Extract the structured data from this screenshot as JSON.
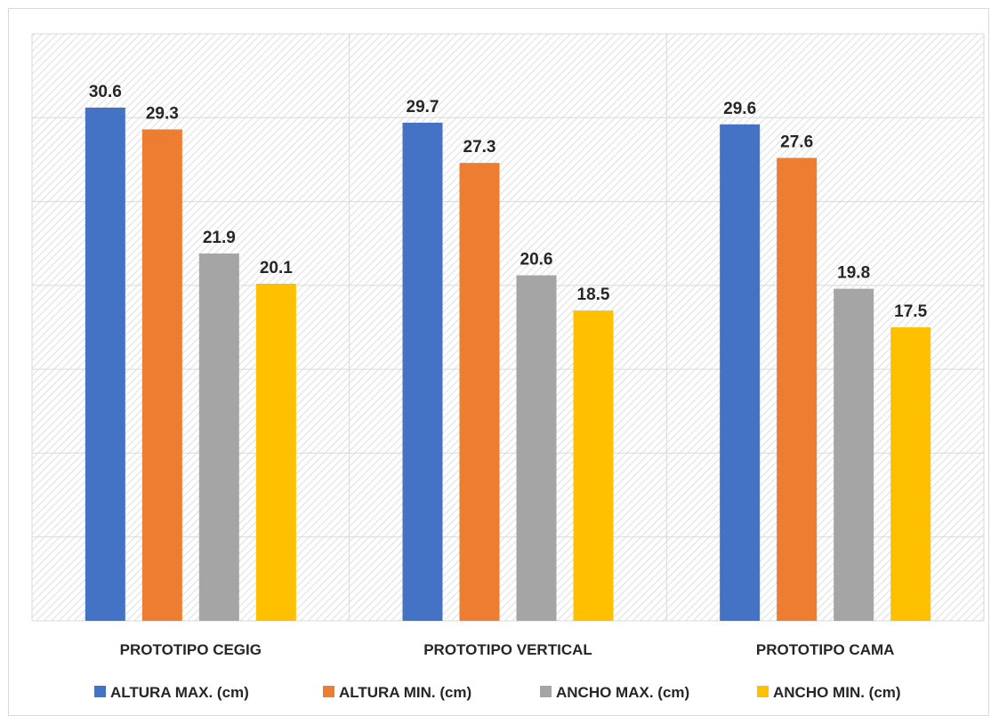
{
  "chart_data": {
    "type": "bar",
    "title": "",
    "xlabel": "",
    "ylabel": "",
    "categories": [
      "PROTOTIPO CEGIG",
      "PROTOTIPO VERTICAL",
      "PROTOTIPO CAMA"
    ],
    "series": [
      {
        "name": "ALTURA MAX. (cm)",
        "color": "#4472c4",
        "values": [
          30.6,
          29.7,
          29.6
        ]
      },
      {
        "name": "ALTURA MIN. (cm)",
        "color": "#ed7d31",
        "values": [
          29.3,
          27.3,
          27.6
        ]
      },
      {
        "name": "ANCHO MAX. (cm)",
        "color": "#a5a5a5",
        "values": [
          21.9,
          20.6,
          19.8
        ]
      },
      {
        "name": "ANCHO MIN. (cm)",
        "color": "#ffc000",
        "values": [
          20.1,
          18.5,
          17.5
        ]
      }
    ],
    "ylim": [
      0,
      35
    ],
    "y_gridline_step": 5,
    "grid": true,
    "legend_position": "bottom",
    "data_labels": true
  }
}
